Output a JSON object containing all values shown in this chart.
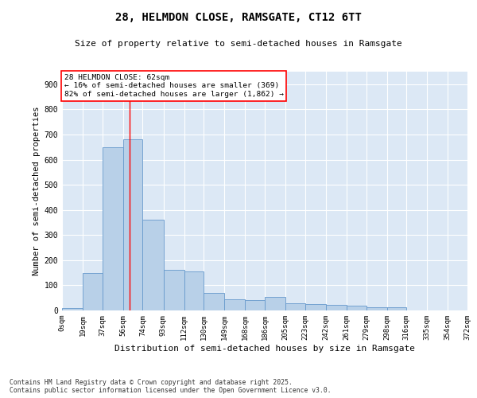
{
  "title": "28, HELMDON CLOSE, RAMSGATE, CT12 6TT",
  "subtitle": "Size of property relative to semi-detached houses in Ramsgate",
  "xlabel": "Distribution of semi-detached houses by size in Ramsgate",
  "ylabel": "Number of semi-detached properties",
  "footnote": "Contains HM Land Registry data © Crown copyright and database right 2025.\nContains public sector information licensed under the Open Government Licence v3.0.",
  "bar_color": "#b8d0e8",
  "bar_edge_color": "#6699cc",
  "background_color": "#dce8f5",
  "property_size": 62,
  "annotation_title": "28 HELMDON CLOSE: 62sqm",
  "annotation_line1": "← 16% of semi-detached houses are smaller (369)",
  "annotation_line2": "82% of semi-detached houses are larger (1,862) →",
  "bin_edges": [
    0,
    19,
    37,
    56,
    74,
    93,
    112,
    130,
    149,
    168,
    186,
    205,
    223,
    242,
    261,
    279,
    298,
    316,
    335,
    354,
    372
  ],
  "bin_labels": [
    "0sqm",
    "19sqm",
    "37sqm",
    "56sqm",
    "74sqm",
    "93sqm",
    "112sqm",
    "130sqm",
    "149sqm",
    "168sqm",
    "186sqm",
    "205sqm",
    "223sqm",
    "242sqm",
    "261sqm",
    "279sqm",
    "298sqm",
    "316sqm",
    "335sqm",
    "354sqm",
    "372sqm"
  ],
  "counts": [
    10,
    150,
    650,
    680,
    360,
    160,
    155,
    70,
    45,
    40,
    55,
    30,
    25,
    22,
    20,
    12,
    12,
    0,
    0,
    0
  ],
  "ylim": [
    0,
    950
  ],
  "yticks": [
    0,
    100,
    200,
    300,
    400,
    500,
    600,
    700,
    800,
    900
  ]
}
